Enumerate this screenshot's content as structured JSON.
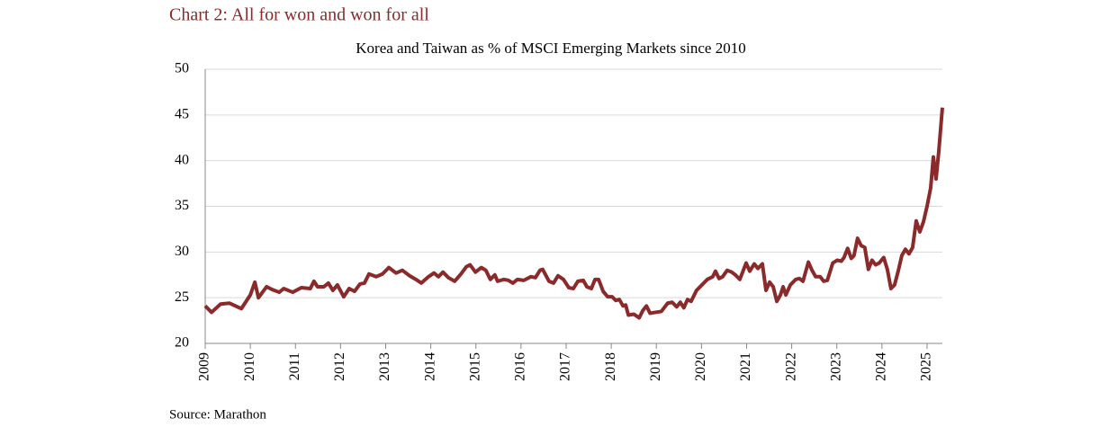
{
  "chart_data": {
    "type": "line",
    "title": "Chart 2: All for won and won for all",
    "subtitle": "Korea and Taiwan as % of MSCI Emerging Markets since 2010",
    "source": "Source: Marathon",
    "x": [
      2009.0,
      2009.14,
      2009.34,
      2009.54,
      2009.8,
      2010.0,
      2010.1,
      2010.18,
      2010.36,
      2010.48,
      2010.64,
      2010.74,
      2010.94,
      2011.13,
      2011.33,
      2011.41,
      2011.49,
      2011.63,
      2011.73,
      2011.83,
      2011.93,
      2012.07,
      2012.19,
      2012.31,
      2012.43,
      2012.53,
      2012.63,
      2012.79,
      2012.93,
      2013.07,
      2013.23,
      2013.37,
      2013.53,
      2013.67,
      2013.79,
      2013.95,
      2014.07,
      2014.17,
      2014.27,
      2014.39,
      2014.53,
      2014.67,
      2014.79,
      2014.87,
      2014.99,
      2015.12,
      2015.22,
      2015.32,
      2015.42,
      2015.48,
      2015.62,
      2015.72,
      2015.82,
      2015.92,
      2016.06,
      2016.22,
      2016.32,
      2016.42,
      2016.48,
      2016.62,
      2016.72,
      2016.82,
      2016.94,
      2017.06,
      2017.16,
      2017.26,
      2017.38,
      2017.46,
      2017.56,
      2017.64,
      2017.72,
      2017.82,
      2017.92,
      2018.02,
      2018.1,
      2018.18,
      2018.26,
      2018.32,
      2018.38,
      2018.5,
      2018.62,
      2018.7,
      2018.78,
      2018.86,
      2018.98,
      2019.11,
      2019.25,
      2019.35,
      2019.45,
      2019.53,
      2019.61,
      2019.69,
      2019.77,
      2019.89,
      2020.01,
      2020.13,
      2020.25,
      2020.31,
      2020.39,
      2020.47,
      2020.57,
      2020.67,
      2020.75,
      2020.85,
      2020.99,
      2021.07,
      2021.17,
      2021.25,
      2021.35,
      2021.43,
      2021.51,
      2021.59,
      2021.67,
      2021.75,
      2021.81,
      2021.87,
      2021.97,
      2022.09,
      2022.17,
      2022.25,
      2022.37,
      2022.45,
      2022.53,
      2022.63,
      2022.71,
      2022.79,
      2022.91,
      2023.01,
      2023.1,
      2023.16,
      2023.24,
      2023.32,
      2023.38,
      2023.46,
      2023.54,
      2023.62,
      2023.7,
      2023.78,
      2023.86,
      2023.94,
      2024.04,
      2024.12,
      2024.2,
      2024.28,
      2024.36,
      2024.44,
      2024.52,
      2024.6,
      2024.68,
      2024.76,
      2024.84,
      2024.92,
      2025.0,
      2025.08,
      2025.14,
      2025.2,
      2025.26,
      2025.34
    ],
    "series": [
      {
        "color": "#8b2a2a",
        "values": [
          24.1,
          23.4,
          24.3,
          24.4,
          23.8,
          25.3,
          26.7,
          25.0,
          26.2,
          25.9,
          25.6,
          26.0,
          25.6,
          26.1,
          26.0,
          26.8,
          26.2,
          26.2,
          26.6,
          25.8,
          26.4,
          25.1,
          26.0,
          25.7,
          26.5,
          26.6,
          27.6,
          27.3,
          27.6,
          28.3,
          27.7,
          28.0,
          27.4,
          27.0,
          26.6,
          27.3,
          27.7,
          27.3,
          27.8,
          27.2,
          26.8,
          27.6,
          28.4,
          28.6,
          27.8,
          28.3,
          28.0,
          27.0,
          27.5,
          26.8,
          27.0,
          26.9,
          26.6,
          27.0,
          26.9,
          27.3,
          27.2,
          28.0,
          28.1,
          26.8,
          26.6,
          27.4,
          27.0,
          26.1,
          26.0,
          26.8,
          26.9,
          26.2,
          26.0,
          27.0,
          27.0,
          25.7,
          25.1,
          25.1,
          24.7,
          24.8,
          24.1,
          24.2,
          23.1,
          23.2,
          22.8,
          23.6,
          24.1,
          23.3,
          23.4,
          23.5,
          24.4,
          24.5,
          24.0,
          24.5,
          23.9,
          24.8,
          24.6,
          25.8,
          26.4,
          27.0,
          27.3,
          27.9,
          27.1,
          27.3,
          28.0,
          27.8,
          27.5,
          27.0,
          28.8,
          27.9,
          28.7,
          28.2,
          28.7,
          25.8,
          26.7,
          26.2,
          24.6,
          25.3,
          26.2,
          25.3,
          26.4,
          27.0,
          27.1,
          26.8,
          28.9,
          28.0,
          27.3,
          27.3,
          26.8,
          26.9,
          28.8,
          29.1,
          29.0,
          29.4,
          30.4,
          29.3,
          29.6,
          31.5,
          30.7,
          30.5,
          28.1,
          29.1,
          28.6,
          28.8,
          29.4,
          28.1,
          26.0,
          26.4,
          27.9,
          29.6,
          30.3,
          29.8,
          30.5,
          33.4,
          32.2,
          33.3,
          35.0,
          37.0,
          40.4,
          38.0,
          41.0,
          45.8
        ]
      }
    ],
    "xlim": [
      2009,
      2025.34
    ],
    "xticks": [
      2009,
      2010,
      2011,
      2012,
      2013,
      2014,
      2015,
      2016,
      2017,
      2018,
      2019,
      2020,
      2021,
      2022,
      2023,
      2024,
      2025
    ],
    "ylim": [
      20,
      50
    ],
    "yticks": [
      20,
      25,
      30,
      35,
      40,
      45,
      50
    ],
    "grid": true
  }
}
